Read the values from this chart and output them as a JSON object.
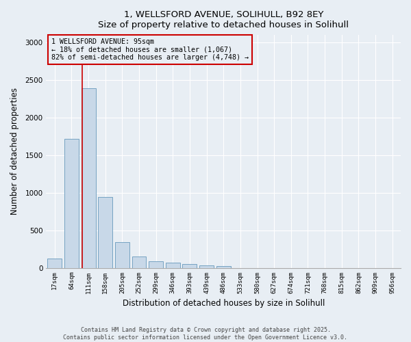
{
  "title_line1": "1, WELLSFORD AVENUE, SOLIHULL, B92 8EY",
  "title_line2": "Size of property relative to detached houses in Solihull",
  "xlabel": "Distribution of detached houses by size in Solihull",
  "ylabel": "Number of detached properties",
  "bar_color": "#c8d8e8",
  "bar_edge_color": "#6699bb",
  "categories": [
    "17sqm",
    "64sqm",
    "111sqm",
    "158sqm",
    "205sqm",
    "252sqm",
    "299sqm",
    "346sqm",
    "393sqm",
    "439sqm",
    "486sqm",
    "533sqm",
    "580sqm",
    "627sqm",
    "674sqm",
    "721sqm",
    "768sqm",
    "815sqm",
    "862sqm",
    "909sqm",
    "956sqm"
  ],
  "values": [
    120,
    1720,
    2390,
    940,
    345,
    155,
    90,
    65,
    48,
    35,
    22,
    0,
    0,
    0,
    0,
    0,
    0,
    0,
    0,
    0,
    0
  ],
  "vline_x": 1.62,
  "vline_color": "#cc0000",
  "annotation_title": "1 WELLSFORD AVENUE: 95sqm",
  "annotation_line2": "← 18% of detached houses are smaller (1,067)",
  "annotation_line3": "82% of semi-detached houses are larger (4,748) →",
  "annotation_box_color": "#cc0000",
  "ylim": [
    0,
    3100
  ],
  "yticks": [
    0,
    500,
    1000,
    1500,
    2000,
    2500,
    3000
  ],
  "footer_line1": "Contains HM Land Registry data © Crown copyright and database right 2025.",
  "footer_line2": "Contains public sector information licensed under the Open Government Licence v3.0.",
  "background_color": "#e8eef4",
  "grid_color": "#ffffff"
}
